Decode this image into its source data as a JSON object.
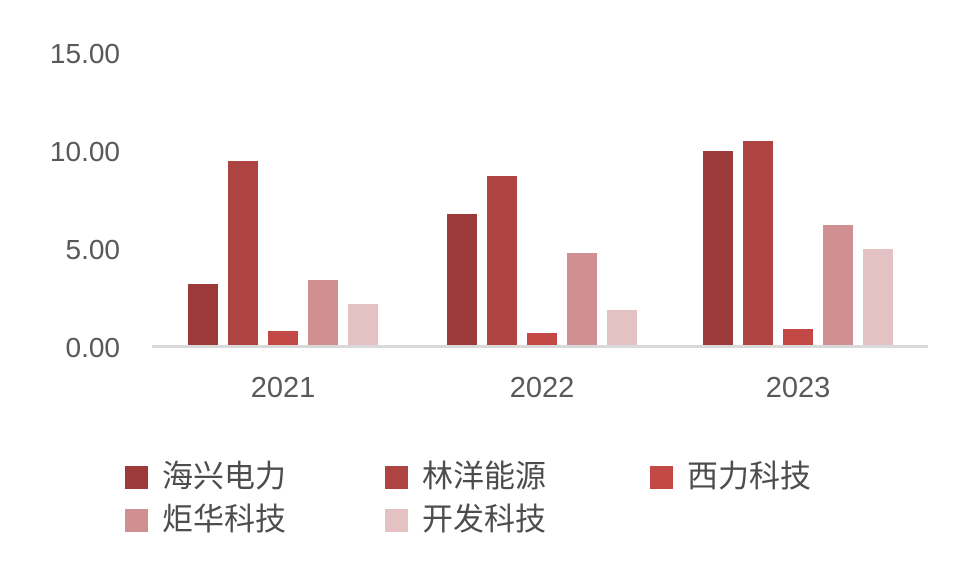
{
  "chart_data": {
    "type": "bar",
    "title": "",
    "xlabel": "",
    "ylabel": "",
    "categories": [
      "2021",
      "2022",
      "2023"
    ],
    "series": [
      {
        "name": "海兴电力",
        "color": "#9b3a38",
        "values": [
          3.1,
          6.7,
          9.9
        ]
      },
      {
        "name": "林洋能源",
        "color": "#ae4442",
        "values": [
          9.4,
          8.6,
          10.4
        ]
      },
      {
        "name": "西力科技",
        "color": "#c24946",
        "values": [
          0.7,
          0.6,
          0.8
        ]
      },
      {
        "name": "炬华科技",
        "color": "#d08f90",
        "values": [
          3.3,
          4.7,
          6.1
        ]
      },
      {
        "name": "开发科技",
        "color": "#e4c2c4",
        "values": [
          2.1,
          1.8,
          4.9
        ]
      }
    ],
    "ylim": [
      0,
      15
    ],
    "y_ticks": [
      "0.00",
      "5.00",
      "10.00",
      "15.00"
    ],
    "grid": false,
    "legend_position": "bottom",
    "axis_line_color": "#d9d9d9",
    "tick_label_color": "#595959",
    "legend_text_color": "#4d4d4d",
    "background_color": "#ffffff"
  }
}
